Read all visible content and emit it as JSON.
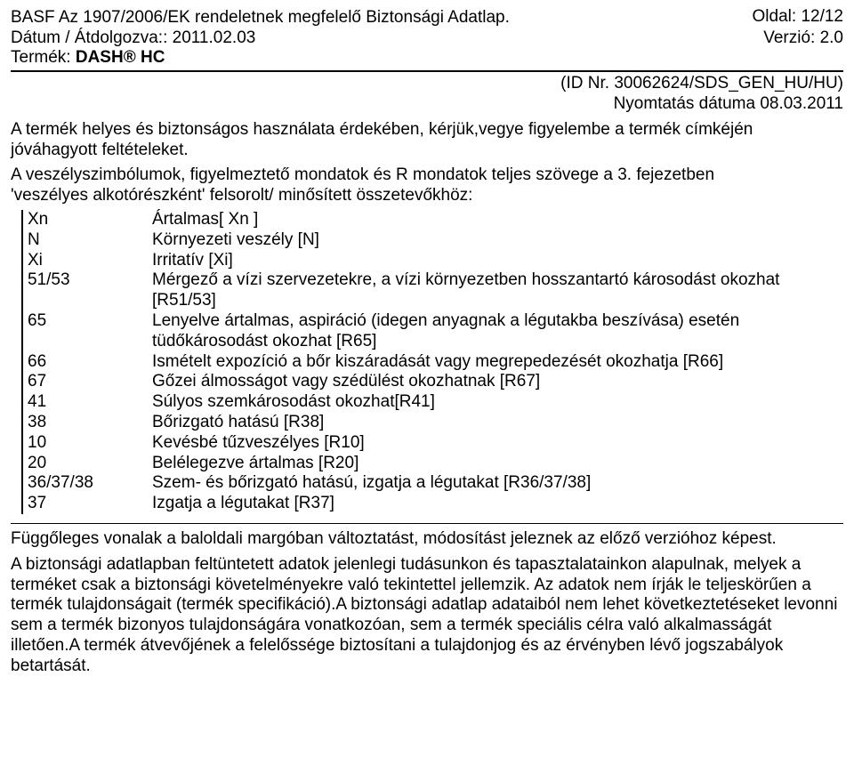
{
  "header": {
    "page_of": "Oldal: 12/12",
    "title": "BASF Az 1907/2006/EK rendeletnek megfelelő Biztonsági Adatlap.",
    "date_label": "Dátum / Átdolgozva:: 2011.02.03",
    "version": "Verzió: 2.0",
    "product_label": "Termék: ",
    "product_name": "DASH® HC",
    "id_line": "(ID Nr. 30062624/SDS_GEN_HU/HU)",
    "print_date": "Nyomtatás dátuma 08.03.2011"
  },
  "intro": "A termék helyes és biztonságos használata érdekében, kérjük,vegye figyelembe a termék címkéjén jóváhagyott feltételeket.",
  "haz_intro_line1": "A veszélyszimbólumok, figyelmeztető mondatok és R mondatok teljes szövege a 3. fejezetben",
  "haz_intro_line2": "'veszélyes alkotórészként' felsorolt/ minősített összetevőkhöz:",
  "hazards": [
    {
      "code": "Xn",
      "desc": "Ártalmas[ Xn ]"
    },
    {
      "code": "N",
      "desc": "Környezeti veszély [N]"
    },
    {
      "code": "Xi",
      "desc": " Irritatív [Xi]"
    },
    {
      "code": "51/53",
      "desc": "Mérgező a vízi szervezetekre, a vízi környezetben hosszantartó károsodást okozhat [R51/53]"
    },
    {
      "code": "65",
      "desc": "Lenyelve ártalmas, aspiráció (idegen anyagnak a légutakba beszívása) esetén tüdőkárosodást okozhat [R65]"
    },
    {
      "code": "66",
      "desc": "Ismételt expozíció a bőr kiszáradását vagy megrepedezését okozhatja [R66]"
    },
    {
      "code": "67",
      "desc": "Gőzei álmosságot vagy szédülést okozhatnak [R67]"
    },
    {
      "code": "41",
      "desc": "Súlyos szemkárosodást okozhat[R41]"
    },
    {
      "code": "38",
      "desc": "Bőrizgató hatású [R38]"
    },
    {
      "code": "10",
      "desc": "Kevésbé tűzveszélyes [R10]"
    },
    {
      "code": "20",
      "desc": "Belélegezve ártalmas [R20]"
    },
    {
      "code": "36/37/38",
      "desc": "Szem- és bőrizgató hatású, izgatja a légutakat [R36/37/38]"
    },
    {
      "code": "37",
      "desc": "Izgatja a légutakat [R37]"
    }
  ],
  "change_note": "Függőleges vonalak a baloldali margóban változtatást, módosítást jeleznek az előző verzióhoz képest.",
  "disclaimer": "A biztonsági adatlapban feltüntetett adatok jelenlegi tudásunkon és tapasztalatainkon alapulnak, melyek a terméket csak a biztonsági követelményekre való tekintettel jellemzik. Az adatok nem írják le teljeskörűen a termék tulajdonságait (termék specifikáció).A biztonsági adatlap adataiból nem lehet következtetéseket levonni sem a termék bizonyos tulajdonságára vonatkozóan, sem a termék speciális célra való alkalmasságát illetően.A termék átvevőjének a felelőssége biztosítani a tulajdonjog és az érvényben lévő jogszabályok betartását."
}
